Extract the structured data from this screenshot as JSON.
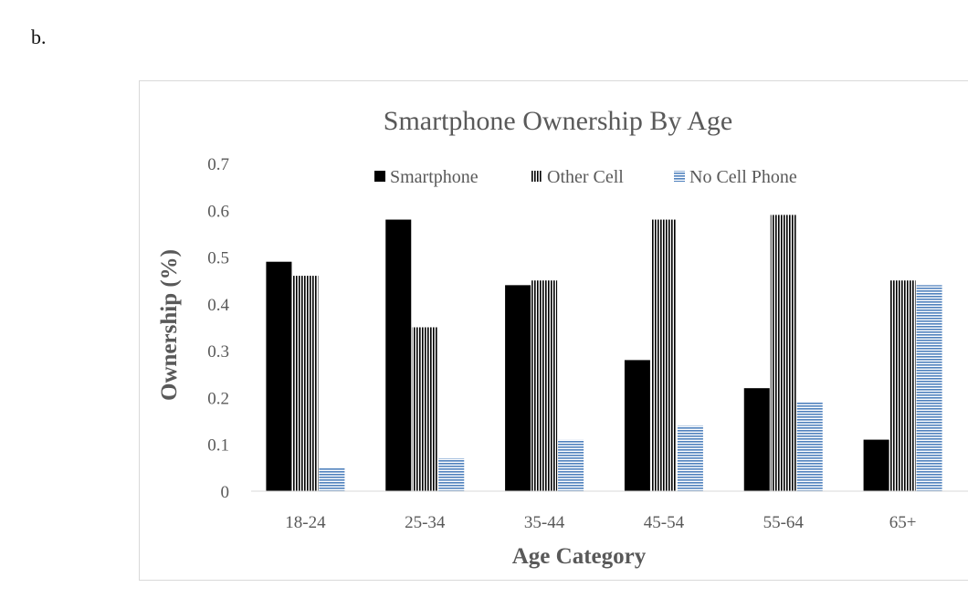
{
  "panel_label": "b.",
  "chart_data": {
    "type": "bar",
    "title": "Smartphone Ownership By Age",
    "xlabel": "Age Category",
    "ylabel": "Ownership (%)",
    "ylim": [
      0,
      0.7
    ],
    "yticks": [
      "0",
      "0.1",
      "0.2",
      "0.3",
      "0.4",
      "0.5",
      "0.6",
      "0.7"
    ],
    "categories": [
      "18-24",
      "25-34",
      "35-44",
      "45-54",
      "55-64",
      "65+"
    ],
    "grid": false,
    "legend_position": "top",
    "series": [
      {
        "name": "Smartphone",
        "color": "#000000",
        "pattern": "solid",
        "values": [
          0.49,
          0.58,
          0.44,
          0.28,
          0.22,
          0.11
        ]
      },
      {
        "name": "Other Cell",
        "color": "#000000",
        "pattern": "vertical-stripes",
        "values": [
          0.46,
          0.35,
          0.45,
          0.58,
          0.59,
          0.45
        ]
      },
      {
        "name": "No Cell Phone",
        "color": "#4f81bd",
        "pattern": "horizontal-stripes",
        "values": [
          0.05,
          0.07,
          0.11,
          0.14,
          0.19,
          0.44
        ]
      }
    ]
  }
}
